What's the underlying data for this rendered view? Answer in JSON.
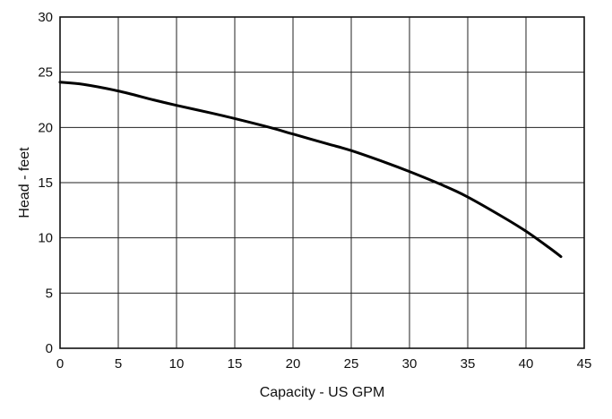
{
  "chart_data": {
    "type": "line",
    "xlabel": "Capacity - US GPM",
    "ylabel": "Head - feet",
    "xlim": [
      0,
      45
    ],
    "ylim": [
      0,
      30
    ],
    "xticks": [
      0,
      5,
      10,
      15,
      20,
      25,
      30,
      35,
      40,
      45
    ],
    "yticks": [
      0,
      5,
      10,
      15,
      20,
      25,
      30
    ],
    "grid": true,
    "series": [
      {
        "x": [
          0,
          2,
          5,
          8,
          10,
          13,
          15,
          18,
          20,
          23,
          25,
          28,
          30,
          33,
          35,
          38,
          40,
          42,
          43
        ],
        "y": [
          24.1,
          23.9,
          23.3,
          22.5,
          22.0,
          21.3,
          20.8,
          20.0,
          19.4,
          18.5,
          17.9,
          16.8,
          16.0,
          14.7,
          13.7,
          11.9,
          10.6,
          9.1,
          8.3
        ]
      }
    ]
  }
}
